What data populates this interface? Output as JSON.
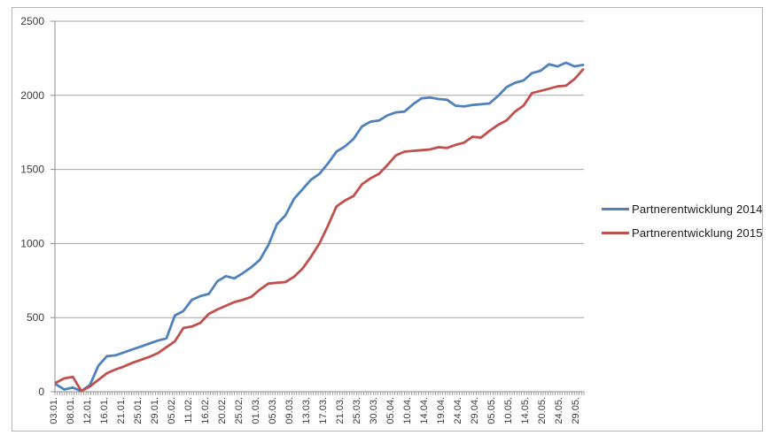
{
  "chart_data": {
    "type": "line",
    "title": "",
    "categories": [
      "03.01.",
      "08.01.",
      "12.01.",
      "16.01.",
      "21.01.",
      "25.01.",
      "29.01.",
      "05.02.",
      "11.02.",
      "16.02.",
      "20.02.",
      "25.02.",
      "01.03.",
      "05.03.",
      "09.03.",
      "13.03.",
      "17.03.",
      "21.03.",
      "25.03.",
      "30.03.",
      "05.04.",
      "10.04.",
      "14.04.",
      "19.04.",
      "24.04.",
      "29.04.",
      "05.05.",
      "10.05.",
      "14.05.",
      "20.05.",
      "24.05.",
      "29.05."
    ],
    "sampling_note": "values are sampled at 2 points per category interval (63 points); even indexes align with category labels",
    "points_per_category_interval": 2,
    "series": [
      {
        "name": "Partnerentwicklung 2014",
        "color": "#4F81BD",
        "values": [
          50,
          15,
          28,
          4,
          45,
          175,
          240,
          245,
          265,
          285,
          305,
          325,
          345,
          360,
          515,
          545,
          620,
          645,
          660,
          745,
          780,
          765,
          800,
          840,
          890,
          990,
          1130,
          1190,
          1300,
          1365,
          1430,
          1470,
          1540,
          1620,
          1655,
          1705,
          1790,
          1822,
          1830,
          1865,
          1885,
          1890,
          1940,
          1980,
          1985,
          1975,
          1970,
          1930,
          1925,
          1935,
          1940,
          1945,
          1995,
          2055,
          2085,
          2100,
          2150,
          2165,
          2210,
          2195,
          2220,
          2195,
          2205
        ]
      },
      {
        "name": "Partnerentwicklung 2015",
        "color": "#C0504D",
        "values": [
          60,
          90,
          100,
          5,
          35,
          80,
          125,
          150,
          170,
          195,
          215,
          235,
          260,
          300,
          340,
          430,
          440,
          465,
          525,
          555,
          580,
          605,
          620,
          640,
          690,
          730,
          735,
          740,
          775,
          830,
          910,
          1000,
          1120,
          1250,
          1290,
          1320,
          1400,
          1440,
          1470,
          1530,
          1595,
          1620,
          1625,
          1630,
          1635,
          1650,
          1645,
          1665,
          1680,
          1720,
          1715,
          1760,
          1800,
          1830,
          1890,
          1930,
          2015,
          2030,
          2045,
          2060,
          2065,
          2110,
          2175
        ]
      }
    ],
    "y_axis": {
      "min": 0,
      "max": 2500,
      "step": 500,
      "tick_labels": [
        "0",
        "500",
        "1000",
        "1500",
        "2000",
        "2500"
      ]
    },
    "x_axis": {
      "label_rotation_deg": -90
    },
    "legend": {
      "position": "right",
      "entries": [
        "Partnerentwicklung 2014",
        "Partnerentwicklung 2015"
      ]
    },
    "grid": true,
    "colors": {
      "gridline": "#a6a6a6",
      "axis": "#8c8c8c",
      "tick_label": "#3b3b3b",
      "frame_border": "#b7b7b7",
      "background": "#ffffff"
    }
  }
}
